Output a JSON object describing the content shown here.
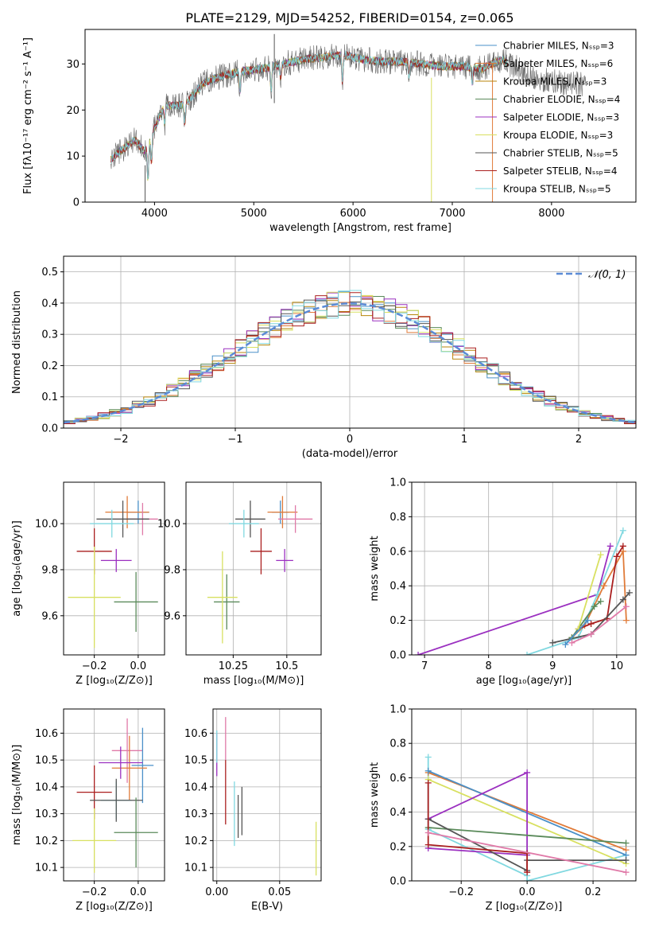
{
  "figure_title": "PLATE=2129, MJD=54252, FIBERID=0154, z=0.065",
  "colors": {
    "chabrier_miles": "#4a90c8",
    "salpeter_miles": "#e07b39",
    "kroupa_miles": "#b8860b",
    "chabrier_elodie": "#5a8a5a",
    "salpeter_elodie": "#9b30c0",
    "kroupa_elodie": "#d8e060",
    "chabrier_stelib": "#555555",
    "salpeter_stelib": "#aa1f1f",
    "kroupa_stelib": "#80d8e0",
    "pink": "#e07aa8",
    "normal_curve": "#5b8bd6"
  },
  "chart_data": [
    {
      "id": "spectrum",
      "type": "line",
      "xlabel": "wavelength [Angstrom, rest frame]",
      "ylabel": "Flux [fλ10⁻¹⁷ erg cm⁻² s⁻¹ A⁻¹]",
      "xlim": [
        3300,
        8850
      ],
      "ylim": [
        0,
        37.5
      ],
      "xticks": [
        4000,
        5000,
        6000,
        7000,
        8000
      ],
      "yticks": [
        0,
        10,
        20,
        30
      ],
      "grid": false,
      "legend_position": "top-right",
      "series": [
        {
          "name": "Chabrier MILES, Nₛₛₚ=3",
          "key": "chabrier_miles"
        },
        {
          "name": "Salpeter MILES, Nₛₛₚ=6",
          "key": "salpeter_miles"
        },
        {
          "name": "Kroupa MILES, Nₛₛₚ=3",
          "key": "kroupa_miles"
        },
        {
          "name": "Chabrier ELODIE, Nₛₛₚ=4",
          "key": "chabrier_elodie"
        },
        {
          "name": "Salpeter ELODIE, Nₛₛₚ=3",
          "key": "salpeter_elodie"
        },
        {
          "name": "Kroupa ELODIE, Nₛₛₚ=3",
          "key": "kroupa_elodie"
        },
        {
          "name": "Chabrier STELIB, Nₛₛₚ=5",
          "key": "chabrier_stelib"
        },
        {
          "name": "Salpeter STELIB, Nₛₛₚ=4",
          "key": "salpeter_stelib"
        },
        {
          "name": "Kroupa STELIB, Nₛₛₚ=5",
          "key": "kroupa_stelib"
        }
      ],
      "continuum": {
        "x": [
          3550,
          3650,
          3800,
          3900,
          4000,
          4100,
          4300,
          4500,
          4700,
          4900,
          5100,
          5300,
          5500,
          5700,
          5900,
          6100,
          6300,
          6500,
          6700,
          6900,
          7100,
          7300,
          7500,
          7700,
          7900,
          8100,
          8300,
          8500
        ],
        "y": [
          9,
          11,
          13.5,
          11,
          16,
          21,
          21,
          26,
          27.5,
          28.5,
          29,
          30,
          31,
          31.5,
          32,
          31,
          30.5,
          30.5,
          30,
          29.5,
          29.5,
          29,
          31,
          28.5,
          26.5,
          26,
          25.5,
          25
        ]
      },
      "absorption_lines": [
        {
          "x": 3934,
          "depth": 8
        },
        {
          "x": 3969,
          "depth": 6
        },
        {
          "x": 4102,
          "depth": 4
        },
        {
          "x": 4305,
          "depth": 4
        },
        {
          "x": 4861,
          "depth": 4
        },
        {
          "x": 5175,
          "depth": 5
        },
        {
          "x": 5270,
          "depth": 3
        },
        {
          "x": 5893,
          "depth": 6
        },
        {
          "x": 6563,
          "depth": 3
        },
        {
          "x": 7200,
          "depth": 3
        }
      ],
      "spikes": [
        {
          "x": 5207,
          "top": 36.5,
          "bottom": 21.5
        },
        {
          "x": 3905,
          "top": 8,
          "bottom": 0
        },
        {
          "x": 6790,
          "top": 27,
          "bottom": 0
        },
        {
          "x": 7405,
          "top": 30,
          "bottom": 0
        }
      ]
    },
    {
      "id": "residual_hist",
      "type": "bar",
      "xlabel": "(data-model)/error",
      "ylabel": "Normed distribution",
      "xlim": [
        -2.5,
        2.5
      ],
      "ylim": [
        0,
        0.55
      ],
      "xticks": [
        -2,
        -1,
        0,
        1,
        2
      ],
      "yticks": [
        0.0,
        0.1,
        0.2,
        0.3,
        0.4,
        0.5
      ],
      "grid": true,
      "legend": {
        "label": "𝒩(0, 1)",
        "position": "top-right"
      },
      "bin_width": 0.1,
      "bin_start": -2.5
    },
    {
      "id": "age_vs_Z",
      "type": "scatter",
      "xlabel": "Z [log₁₀(Z/Z⊙)]",
      "ylabel": "age  [log₁₀(age/yr)]",
      "xlim": [
        -0.34,
        0.12
      ],
      "ylim": [
        9.43,
        10.18
      ],
      "xticks": [
        -0.2,
        0.0
      ],
      "yticks": [
        9.6,
        9.8,
        10.0
      ],
      "grid": true,
      "points": [
        {
          "key": "chabrier_miles",
          "x": 0.0,
          "y": 10.05,
          "xerr": 0.05,
          "yerr": 0.05
        },
        {
          "key": "salpeter_miles",
          "x": -0.05,
          "y": 10.05,
          "xerr": 0.1,
          "yerr": 0.07
        },
        {
          "key": "pink",
          "x": 0.02,
          "y": 10.02,
          "xerr": 0.07,
          "yerr": 0.07
        },
        {
          "key": "chabrier_stelib",
          "x": -0.07,
          "y": 10.02,
          "xerr": 0.12,
          "yerr": 0.08
        },
        {
          "key": "kroupa_stelib",
          "x": -0.12,
          "y": 10.0,
          "xerr": 0.1,
          "yerr": 0.06
        },
        {
          "key": "salpeter_elodie",
          "x": -0.1,
          "y": 9.84,
          "xerr": 0.07,
          "yerr": 0.05
        },
        {
          "key": "salpeter_stelib",
          "x": -0.2,
          "y": 9.88,
          "xerr": 0.08,
          "yerr": 0.1
        },
        {
          "key": "chabrier_elodie",
          "x": -0.01,
          "y": 9.66,
          "xerr": 0.1,
          "yerr": 0.13
        },
        {
          "key": "kroupa_elodie",
          "x": -0.2,
          "y": 9.68,
          "xerr": 0.12,
          "yerr": 0.22
        }
      ]
    },
    {
      "id": "age_vs_mass",
      "type": "scatter",
      "xlabel": "mass [log₁₀(M/M⊙)]",
      "ylabel": "",
      "xlim": [
        10.03,
        10.66
      ],
      "ylim": [
        9.43,
        10.18
      ],
      "xticks": [
        10.25,
        10.5
      ],
      "yticks": [
        9.6,
        9.8,
        10.0
      ],
      "grid": true,
      "points": [
        {
          "key": "chabrier_miles",
          "x": 10.47,
          "y": 10.05,
          "xerr": 0.04,
          "yerr": 0.05
        },
        {
          "key": "salpeter_miles",
          "x": 10.48,
          "y": 10.05,
          "xerr": 0.07,
          "yerr": 0.07
        },
        {
          "key": "pink",
          "x": 10.54,
          "y": 10.02,
          "xerr": 0.08,
          "yerr": 0.06
        },
        {
          "key": "chabrier_stelib",
          "x": 10.33,
          "y": 10.02,
          "xerr": 0.07,
          "yerr": 0.08
        },
        {
          "key": "kroupa_stelib",
          "x": 10.3,
          "y": 10.0,
          "xerr": 0.07,
          "yerr": 0.06
        },
        {
          "key": "salpeter_elodie",
          "x": 10.49,
          "y": 9.84,
          "xerr": 0.04,
          "yerr": 0.05
        },
        {
          "key": "salpeter_stelib",
          "x": 10.38,
          "y": 9.88,
          "xerr": 0.05,
          "yerr": 0.1
        },
        {
          "key": "chabrier_elodie",
          "x": 10.22,
          "y": 9.66,
          "xerr": 0.06,
          "yerr": 0.12
        },
        {
          "key": "kroupa_elodie",
          "x": 10.2,
          "y": 9.68,
          "xerr": 0.07,
          "yerr": 0.2
        }
      ]
    },
    {
      "id": "weight_vs_age",
      "type": "line",
      "xlabel": "age  [log₁₀(age/yr)]",
      "ylabel": "mass weight",
      "xlim": [
        6.8,
        10.3
      ],
      "ylim": [
        0,
        1
      ],
      "xticks": [
        7,
        8,
        9,
        10
      ],
      "yticks": [
        0.0,
        0.2,
        0.4,
        0.6,
        0.8,
        1.0
      ],
      "grid": true,
      "series": [
        {
          "key": "salpeter_elodie",
          "x": [
            6.9,
            9.7,
            9.9
          ],
          "y": [
            0.0,
            0.35,
            0.63
          ]
        },
        {
          "key": "kroupa_stelib",
          "x": [
            8.6,
            9.4,
            9.7,
            10.1
          ],
          "y": [
            0.0,
            0.1,
            0.35,
            0.72
          ]
        },
        {
          "key": "salpeter_miles",
          "x": [
            9.3,
            9.5,
            9.8,
            10.1,
            10.15
          ],
          "y": [
            0.1,
            0.17,
            0.4,
            0.6,
            0.2
          ]
        },
        {
          "key": "salpeter_stelib",
          "x": [
            9.4,
            9.6,
            9.85,
            10.0,
            10.1
          ],
          "y": [
            0.15,
            0.18,
            0.21,
            0.57,
            0.63
          ]
        },
        {
          "key": "chabrier_stelib",
          "x": [
            9.0,
            9.6,
            10.1,
            10.2
          ],
          "y": [
            0.07,
            0.12,
            0.32,
            0.36
          ]
        },
        {
          "key": "chabrier_elodie",
          "x": [
            9.3,
            9.65,
            9.75
          ],
          "y": [
            0.1,
            0.28,
            0.31
          ]
        },
        {
          "key": "kroupa_elodie",
          "x": [
            9.4,
            9.75
          ],
          "y": [
            0.15,
            0.58
          ]
        },
        {
          "key": "pink",
          "x": [
            9.3,
            9.6,
            10.15
          ],
          "y": [
            0.07,
            0.12,
            0.28
          ]
        },
        {
          "key": "chabrier_miles",
          "x": [
            9.2,
            9.55
          ],
          "y": [
            0.06,
            0.2
          ]
        }
      ]
    },
    {
      "id": "mass_vs_Z",
      "type": "scatter",
      "xlabel": "Z [log₁₀(Z/Z⊙)]",
      "ylabel": "mass [log₁₀(M/M⊙)]",
      "xlim": [
        -0.34,
        0.12
      ],
      "ylim": [
        10.05,
        10.69
      ],
      "xticks": [
        -0.2,
        0.0
      ],
      "yticks": [
        10.1,
        10.2,
        10.3,
        10.4,
        10.5,
        10.6
      ],
      "grid": true,
      "points": [
        {
          "key": "pink",
          "x": -0.05,
          "y": 10.535,
          "xerr": 0.07,
          "yerr": 0.12
        },
        {
          "key": "chabrier_miles",
          "x": 0.02,
          "y": 10.48,
          "xerr": 0.05,
          "yerr": 0.14
        },
        {
          "key": "salpeter_miles",
          "x": -0.04,
          "y": 10.47,
          "xerr": 0.08,
          "yerr": 0.12
        },
        {
          "key": "salpeter_elodie",
          "x": -0.08,
          "y": 10.49,
          "xerr": 0.1,
          "yerr": 0.06
        },
        {
          "key": "salpeter_stelib",
          "x": -0.2,
          "y": 10.38,
          "xerr": 0.08,
          "yerr": 0.1
        },
        {
          "key": "kroupa_stelib",
          "x": -0.1,
          "y": 10.35,
          "xerr": 0.07,
          "yerr": 0.07
        },
        {
          "key": "chabrier_stelib",
          "x": -0.1,
          "y": 10.35,
          "xerr": 0.12,
          "yerr": 0.08
        },
        {
          "key": "chabrier_elodie",
          "x": -0.01,
          "y": 10.23,
          "xerr": 0.1,
          "yerr": 0.13
        },
        {
          "key": "kroupa_elodie",
          "x": -0.2,
          "y": 10.2,
          "xerr": 0.1,
          "yerr": 0.12
        }
      ]
    },
    {
      "id": "mass_vs_ebv",
      "type": "scatter",
      "xlabel": "E(B-V)",
      "ylabel": "",
      "xlim": [
        -0.003,
        0.083
      ],
      "ylim": [
        10.05,
        10.69
      ],
      "xticks": [
        0.0,
        0.05
      ],
      "yticks": [
        10.1,
        10.2,
        10.3,
        10.4,
        10.5,
        10.6
      ],
      "grid": true,
      "points": [
        {
          "key": "salpeter_elodie",
          "x": 0.0,
          "y": 10.52,
          "xerr": 0.0,
          "yerr": 0.08
        },
        {
          "key": "kroupa_stelib",
          "x": 0.0,
          "y": 10.55,
          "xerr": 0.0,
          "yerr": 0.06
        },
        {
          "key": "pink",
          "x": 0.007,
          "y": 10.58,
          "xerr": 0.0,
          "yerr": 0.08
        },
        {
          "key": "salpeter_stelib",
          "x": 0.007,
          "y": 10.38,
          "xerr": 0.0,
          "yerr": 0.12
        },
        {
          "key": "kroupa_stelib",
          "x": 0.014,
          "y": 10.3,
          "xerr": 0.0,
          "yerr": 0.12
        },
        {
          "key": "chabrier_stelib",
          "x": 0.017,
          "y": 10.29,
          "xerr": 0.0,
          "yerr": 0.08
        },
        {
          "key": "chabrier_stelib",
          "x": 0.02,
          "y": 10.31,
          "xerr": 0.0,
          "yerr": 0.09
        },
        {
          "key": "kroupa_elodie",
          "x": 0.079,
          "y": 10.17,
          "xerr": 0.0,
          "yerr": 0.1
        }
      ]
    },
    {
      "id": "weight_vs_Z",
      "type": "line",
      "xlabel": "Z [log₁₀(Z/Z⊙)]",
      "ylabel": "mass weight",
      "xlim": [
        -0.35,
        0.33
      ],
      "ylim": [
        0,
        1
      ],
      "xticks": [
        -0.2,
        0.0,
        0.2
      ],
      "yticks": [
        0.0,
        0.2,
        0.4,
        0.6,
        0.8,
        1.0
      ],
      "grid": true,
      "series": [
        {
          "key": "kroupa_stelib",
          "x": [
            -0.3,
            -0.3,
            0.0,
            0.0,
            0.3
          ],
          "y": [
            0.72,
            0.3,
            0.03,
            0.0,
            0.15
          ]
        },
        {
          "key": "salpeter_miles",
          "x": [
            -0.3,
            0.3
          ],
          "y": [
            0.63,
            0.18
          ]
        },
        {
          "key": "chabrier_miles",
          "x": [
            -0.3,
            0.3
          ],
          "y": [
            0.64,
            0.15
          ]
        },
        {
          "key": "kroupa_elodie",
          "x": [
            -0.3,
            0.3
          ],
          "y": [
            0.59,
            0.1
          ]
        },
        {
          "key": "salpeter_elodie",
          "x": [
            -0.3,
            0.0,
            0.0,
            -0.3
          ],
          "y": [
            0.36,
            0.63,
            0.15,
            0.19
          ]
        },
        {
          "key": "chabrier_elodie",
          "x": [
            -0.3,
            0.3
          ],
          "y": [
            0.31,
            0.22
          ]
        },
        {
          "key": "chabrier_stelib",
          "x": [
            -0.3,
            0.0,
            0.0,
            0.3
          ],
          "y": [
            0.36,
            0.06,
            0.12,
            0.12
          ]
        },
        {
          "key": "salpeter_stelib",
          "x": [
            -0.3,
            -0.3,
            0.0,
            0.0
          ],
          "y": [
            0.57,
            0.21,
            0.16,
            0.05
          ]
        },
        {
          "key": "pink",
          "x": [
            -0.3,
            0.3
          ],
          "y": [
            0.28,
            0.05
          ]
        }
      ]
    }
  ]
}
